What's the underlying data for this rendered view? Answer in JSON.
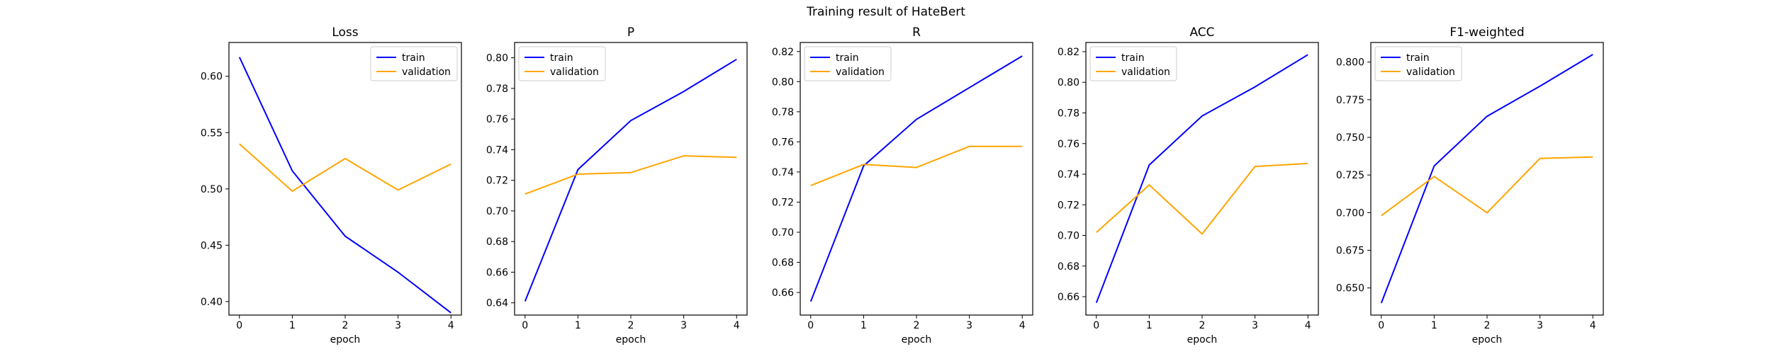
{
  "figure": {
    "title": "Training result of HateBert"
  },
  "chart_data": [
    {
      "type": "line",
      "title": "Loss",
      "xlabel": "epoch",
      "ylabel": "",
      "x": [
        0,
        1,
        2,
        3,
        4
      ],
      "xticks": [
        "0",
        "1",
        "2",
        "3",
        "4"
      ],
      "ylim": [
        0.388,
        0.63
      ],
      "yticks": [
        0.4,
        0.45,
        0.5,
        0.55,
        0.6
      ],
      "ytick_labels": [
        "0.40",
        "0.45",
        "0.50",
        "0.55",
        "0.60"
      ],
      "legend_position": "top-right",
      "grid": false,
      "series": [
        {
          "name": "train",
          "color": "#0000ff",
          "values": [
            0.617,
            0.516,
            0.458,
            0.426,
            0.39
          ]
        },
        {
          "name": "validation",
          "color": "#ffa500",
          "values": [
            0.54,
            0.498,
            0.527,
            0.499,
            0.522
          ]
        }
      ]
    },
    {
      "type": "line",
      "title": "P",
      "xlabel": "epoch",
      "ylabel": "",
      "x": [
        0,
        1,
        2,
        3,
        4
      ],
      "xticks": [
        "0",
        "1",
        "2",
        "3",
        "4"
      ],
      "ylim": [
        0.632,
        0.81
      ],
      "yticks": [
        0.64,
        0.66,
        0.68,
        0.7,
        0.72,
        0.74,
        0.76,
        0.78,
        0.8
      ],
      "ytick_labels": [
        "0.64",
        "0.66",
        "0.68",
        "0.70",
        "0.72",
        "0.74",
        "0.76",
        "0.78",
        "0.80"
      ],
      "legend_position": "top-left",
      "grid": false,
      "series": [
        {
          "name": "train",
          "color": "#0000ff",
          "values": [
            0.641,
            0.727,
            0.759,
            0.778,
            0.799
          ]
        },
        {
          "name": "validation",
          "color": "#ffa500",
          "values": [
            0.711,
            0.724,
            0.725,
            0.736,
            0.735
          ]
        }
      ]
    },
    {
      "type": "line",
      "title": "R",
      "xlabel": "epoch",
      "ylabel": "",
      "x": [
        0,
        1,
        2,
        3,
        4
      ],
      "xticks": [
        "0",
        "1",
        "2",
        "3",
        "4"
      ],
      "ylim": [
        0.645,
        0.826
      ],
      "yticks": [
        0.66,
        0.68,
        0.7,
        0.72,
        0.74,
        0.76,
        0.78,
        0.8,
        0.82
      ],
      "ytick_labels": [
        "0.66",
        "0.68",
        "0.70",
        "0.72",
        "0.74",
        "0.76",
        "0.78",
        "0.80",
        "0.82"
      ],
      "legend_position": "top-left",
      "grid": false,
      "series": [
        {
          "name": "train",
          "color": "#0000ff",
          "values": [
            0.654,
            0.744,
            0.775,
            0.796,
            0.817
          ]
        },
        {
          "name": "validation",
          "color": "#ffa500",
          "values": [
            0.731,
            0.745,
            0.743,
            0.757,
            0.757
          ]
        }
      ]
    },
    {
      "type": "line",
      "title": "ACC",
      "xlabel": "epoch",
      "ylabel": "",
      "x": [
        0,
        1,
        2,
        3,
        4
      ],
      "xticks": [
        "0",
        "1",
        "2",
        "3",
        "4"
      ],
      "ylim": [
        0.648,
        0.826
      ],
      "yticks": [
        0.66,
        0.68,
        0.7,
        0.72,
        0.74,
        0.76,
        0.78,
        0.8,
        0.82
      ],
      "ytick_labels": [
        "0.66",
        "0.68",
        "0.70",
        "0.72",
        "0.74",
        "0.76",
        "0.78",
        "0.80",
        "0.82"
      ],
      "legend_position": "top-left",
      "grid": false,
      "series": [
        {
          "name": "train",
          "color": "#0000ff",
          "values": [
            0.656,
            0.746,
            0.778,
            0.797,
            0.818
          ]
        },
        {
          "name": "validation",
          "color": "#ffa500",
          "values": [
            0.702,
            0.733,
            0.701,
            0.745,
            0.747
          ]
        }
      ]
    },
    {
      "type": "line",
      "title": "F1-weighted",
      "xlabel": "epoch",
      "ylabel": "",
      "x": [
        0,
        1,
        2,
        3,
        4
      ],
      "xticks": [
        "0",
        "1",
        "2",
        "3",
        "4"
      ],
      "ylim": [
        0.632,
        0.813
      ],
      "yticks": [
        0.65,
        0.675,
        0.7,
        0.725,
        0.75,
        0.775,
        0.8
      ],
      "ytick_labels": [
        "0.650",
        "0.675",
        "0.700",
        "0.725",
        "0.750",
        "0.775",
        "0.800"
      ],
      "legend_position": "top-left",
      "grid": false,
      "series": [
        {
          "name": "train",
          "color": "#0000ff",
          "values": [
            0.64,
            0.731,
            0.764,
            0.784,
            0.805
          ]
        },
        {
          "name": "validation",
          "color": "#ffa500",
          "values": [
            0.698,
            0.724,
            0.7,
            0.736,
            0.737
          ]
        }
      ]
    }
  ]
}
